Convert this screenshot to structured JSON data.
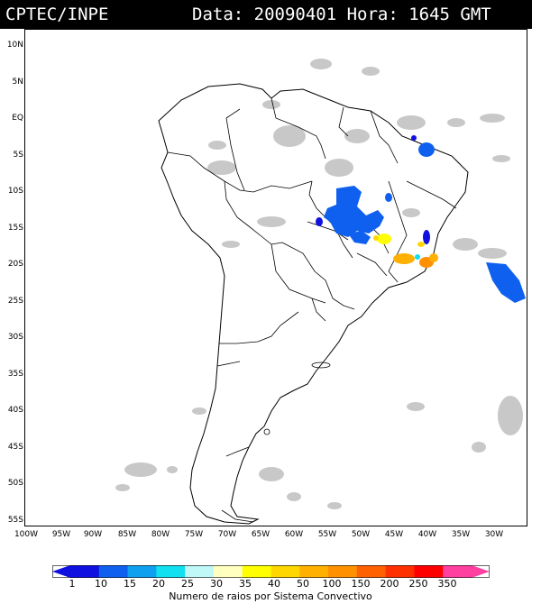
{
  "header": {
    "org": "CPTEC/INPE",
    "meta": "Data: 20090401 Hora: 1645 GMT"
  },
  "latitudes": [
    "10N",
    "5N",
    "EQ",
    "5S",
    "10S",
    "15S",
    "20S",
    "25S",
    "30S",
    "35S",
    "40S",
    "45S",
    "50S",
    "55S"
  ],
  "longitudes": [
    "100W",
    "95W",
    "90W",
    "85W",
    "80W",
    "75W",
    "70W",
    "65W",
    "60W",
    "55W",
    "50W",
    "45W",
    "40W",
    "35W",
    "30W"
  ],
  "legend": {
    "values": [
      "1",
      "10",
      "15",
      "20",
      "25",
      "30",
      "35",
      "40",
      "50",
      "100",
      "150",
      "200",
      "250",
      "350"
    ],
    "colors": [
      "#1010e0",
      "#1060f0",
      "#10a0f0",
      "#10e0f0",
      "#c0f8f8",
      "#ffffc0",
      "#ffff00",
      "#ffd700",
      "#ffb000",
      "#ff9000",
      "#ff6000",
      "#ff3000",
      "#ff0000",
      "#ff40a0"
    ],
    "caption": "Numero de raios por Sistema Convectivo"
  },
  "colors": {
    "cloud": "#c8c8c8",
    "coast": "#000000"
  }
}
